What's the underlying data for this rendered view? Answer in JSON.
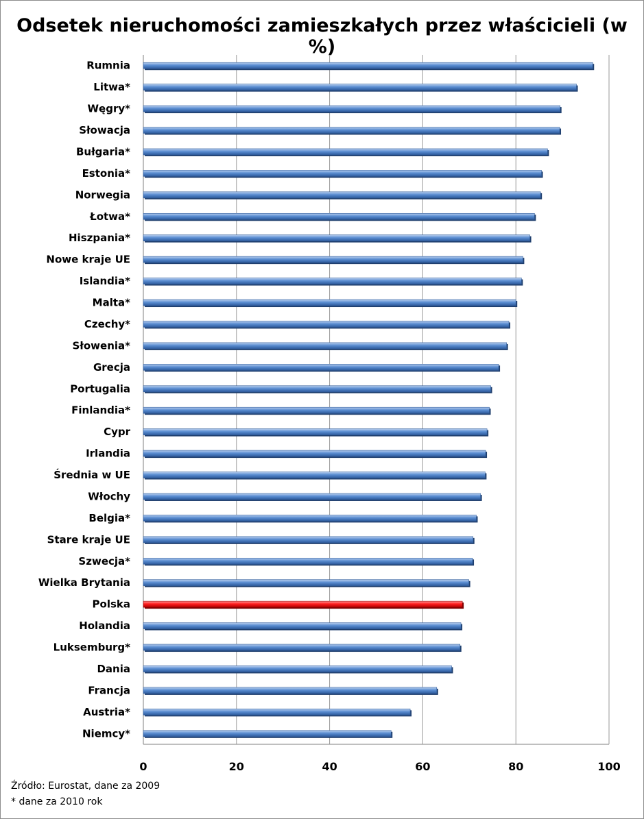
{
  "chart_data": {
    "type": "bar",
    "orientation": "horizontal",
    "title": "Odsetek nieruchomości zamieszkałych przez właścicieli (w %)",
    "categories": [
      "Rumnia",
      "Litwa*",
      "Węgry*",
      "Słowacja",
      "Bułgaria*",
      "Estonia*",
      "Norwegia",
      "Łotwa*",
      "Hiszpania*",
      "Nowe kraje UE",
      "Islandia*",
      "Malta*",
      "Czechy*",
      "Słowenia*",
      "Grecja",
      "Portugalia",
      "Finlandia*",
      "Cypr",
      "Irlandia",
      "Średnia w UE",
      "Włochy",
      "Belgia*",
      "Stare kraje UE",
      "Szwecja*",
      "Wielka Brytania",
      "Polska",
      "Holandia",
      "Luksemburg*",
      "Dania",
      "Francja",
      "Austria*",
      "Niemcy*"
    ],
    "values": [
      96.5,
      93.0,
      89.5,
      89.4,
      86.8,
      85.5,
      85.3,
      84.0,
      83.0,
      81.5,
      81.2,
      80.0,
      78.5,
      78.0,
      76.3,
      74.6,
      74.3,
      73.8,
      73.5,
      73.4,
      72.4,
      71.5,
      70.8,
      70.7,
      69.9,
      68.5,
      68.2,
      68.0,
      66.2,
      63.0,
      57.3,
      53.2
    ],
    "highlight": "Polska",
    "xlim": [
      0,
      100
    ],
    "xticks": [
      "0",
      "20",
      "40",
      "60",
      "80",
      "100"
    ],
    "grid": "vertical",
    "colors": {
      "bar": "#4f81bd",
      "highlight": "#ff0000",
      "grid": "#9a9a9a"
    }
  },
  "notes": {
    "source": "Źródło: Eurostat, dane za 2009",
    "asterisk": "* dane za 2010 rok"
  }
}
